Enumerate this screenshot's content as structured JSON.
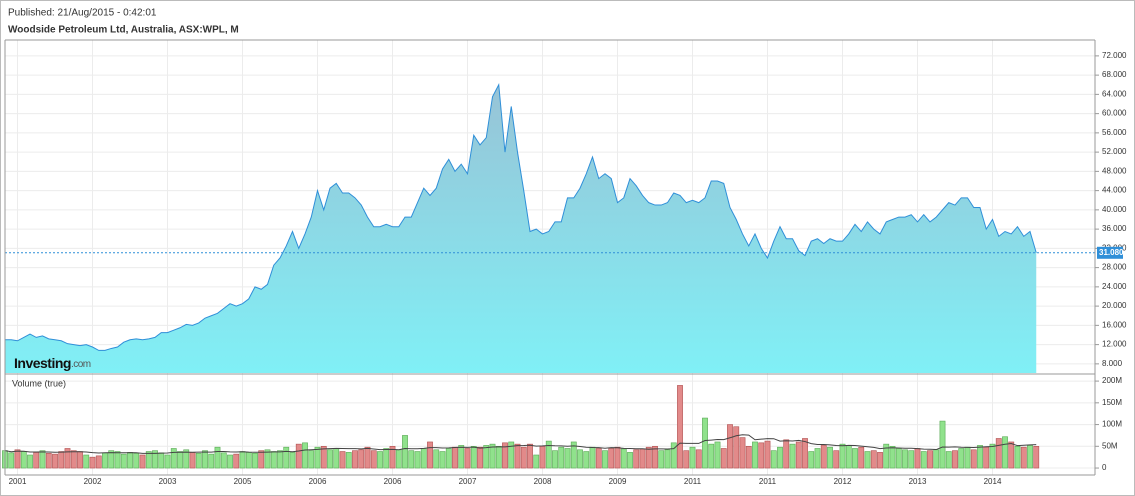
{
  "published": "Published: 21/Aug/2015 - 0:42:01",
  "chart_data": [
    {
      "type": "area",
      "title": "Woodside Petroleum Ltd, Australia, ASX:WPL, M",
      "logo": {
        "name": "Investing",
        "suffix": ".com"
      },
      "x_labels": [
        "2001",
        "2002",
        "2003",
        "2005",
        "2006",
        "2006",
        "2007",
        "2008",
        "2009",
        "2011",
        "2011",
        "2012",
        "2013",
        "2014"
      ],
      "line_color": "#2f8fd8",
      "fill_top": "#98c3d6",
      "fill_bottom": "#80f0f6",
      "values": [
        13,
        13,
        12.8,
        13.5,
        14.2,
        13.5,
        13.8,
        13.2,
        13,
        12.8,
        12.2,
        12,
        11.8,
        12,
        11.5,
        10.8,
        10.8,
        11.2,
        11.5,
        12.5,
        13,
        13.2,
        13,
        13.2,
        13.5,
        14.5,
        14.5,
        15,
        15.5,
        16.2,
        16,
        16.5,
        17.5,
        18,
        18.5,
        19.5,
        20.5,
        20,
        20.5,
        21.5,
        24,
        23.5,
        24.5,
        28.5,
        30,
        32.5,
        35.5,
        32,
        35,
        38.5,
        44,
        40,
        44.5,
        45.5,
        43.5,
        43.5,
        42.5,
        41,
        38.5,
        36.5,
        36.5,
        37,
        36.5,
        36.5,
        38.5,
        38.5,
        41.5,
        44.5,
        43,
        44.5,
        48.5,
        50.5,
        48,
        49.5,
        47.5,
        55.5,
        53.5,
        55,
        63.5,
        66,
        52,
        61.5,
        52,
        44,
        35.5,
        36,
        35,
        35.5,
        37.5,
        37.5,
        42.5,
        42.5,
        44.5,
        47.5,
        51,
        46.5,
        47.5,
        46.5,
        41.5,
        42.5,
        46.5,
        45,
        43,
        41.5,
        41,
        41,
        41.5,
        43.5,
        43,
        41.5,
        42,
        41.5,
        42.5,
        46,
        46,
        45.5,
        40.5,
        38,
        35,
        32.5,
        35,
        32,
        30,
        33.5,
        36.5,
        34,
        34,
        31.5,
        30.5,
        33.5,
        34,
        33,
        34,
        33.5,
        33.5,
        35,
        37,
        35.5,
        37.5,
        36,
        35,
        37.5,
        38,
        38.5,
        38.5,
        39,
        37.5,
        39,
        37.5,
        38.5,
        40,
        41.5,
        41,
        42.5,
        42.5,
        40.5,
        40.5,
        36,
        38,
        34.5,
        35.5,
        35,
        36.5,
        34.5,
        35.5,
        31.08
      ],
      "current": {
        "value": 31.08,
        "label": "31.080"
      },
      "ylim": [
        6.1,
        75.3
      ],
      "yticks": [
        {
          "value": 8,
          "label": "8.000"
        },
        {
          "value": 12,
          "label": "12.000"
        },
        {
          "value": 16,
          "label": "16.000"
        },
        {
          "value": 20,
          "label": "20.000"
        },
        {
          "value": 24,
          "label": "24.000"
        },
        {
          "value": 28,
          "label": "28.000"
        },
        {
          "value": 32,
          "label": "32.000"
        },
        {
          "value": 36,
          "label": "36.000"
        },
        {
          "value": 40,
          "label": "40.000"
        },
        {
          "value": 44,
          "label": "44.000"
        },
        {
          "value": 48,
          "label": "48.000"
        },
        {
          "value": 52,
          "label": "52.000"
        },
        {
          "value": 56,
          "label": "56.000"
        },
        {
          "value": 60,
          "label": "60.000"
        },
        {
          "value": 64,
          "label": "64.000"
        },
        {
          "value": 68,
          "label": "68.000"
        },
        {
          "value": 72,
          "label": "72.000"
        }
      ],
      "grid": true
    },
    {
      "type": "bar",
      "title": "Volume (true)",
      "up_color": "#90e28c",
      "down_color": "#e28a8a",
      "average_color": "#444444",
      "values": [
        40,
        35,
        42,
        38,
        30,
        36,
        40,
        34,
        32,
        38,
        45,
        40,
        38,
        30,
        25,
        28,
        35,
        40,
        38,
        32,
        36,
        34,
        30,
        38,
        40,
        35,
        30,
        45,
        38,
        42,
        36,
        34,
        40,
        32,
        48,
        35,
        30,
        32,
        38,
        36,
        34,
        40,
        42,
        38,
        40,
        48,
        36,
        55,
        58,
        40,
        48,
        50,
        42,
        45,
        38,
        36,
        40,
        42,
        48,
        40,
        38,
        45,
        50,
        42,
        75,
        40,
        38,
        45,
        60,
        42,
        38,
        45,
        48,
        52,
        45,
        50,
        48,
        52,
        55,
        50,
        58,
        60,
        55,
        48,
        55,
        30,
        50,
        62,
        40,
        48,
        45,
        60,
        42,
        38,
        48,
        45,
        40,
        45,
        48,
        44,
        36,
        42,
        44,
        48,
        50,
        40,
        42,
        58,
        190,
        40,
        48,
        42,
        115,
        55,
        60,
        45,
        100,
        95,
        70,
        50,
        60,
        58,
        62,
        40,
        48,
        65,
        55,
        60,
        68,
        38,
        45,
        52,
        48,
        40,
        55,
        52,
        45,
        48,
        38,
        40,
        36,
        55,
        50,
        45,
        42,
        40,
        45,
        38,
        40,
        42,
        108,
        38,
        40,
        45,
        48,
        42,
        52,
        48,
        55,
        68,
        72,
        60,
        50,
        48,
        52,
        50
      ],
      "ylim": [
        -16,
        214
      ],
      "yticks": [
        0,
        {
          "value": 50,
          "label": "50M"
        },
        {
          "value": 100,
          "label": "100M"
        },
        {
          "value": 150,
          "label": "150M"
        },
        {
          "value": 200,
          "label": "200M"
        }
      ],
      "grid": true
    }
  ]
}
